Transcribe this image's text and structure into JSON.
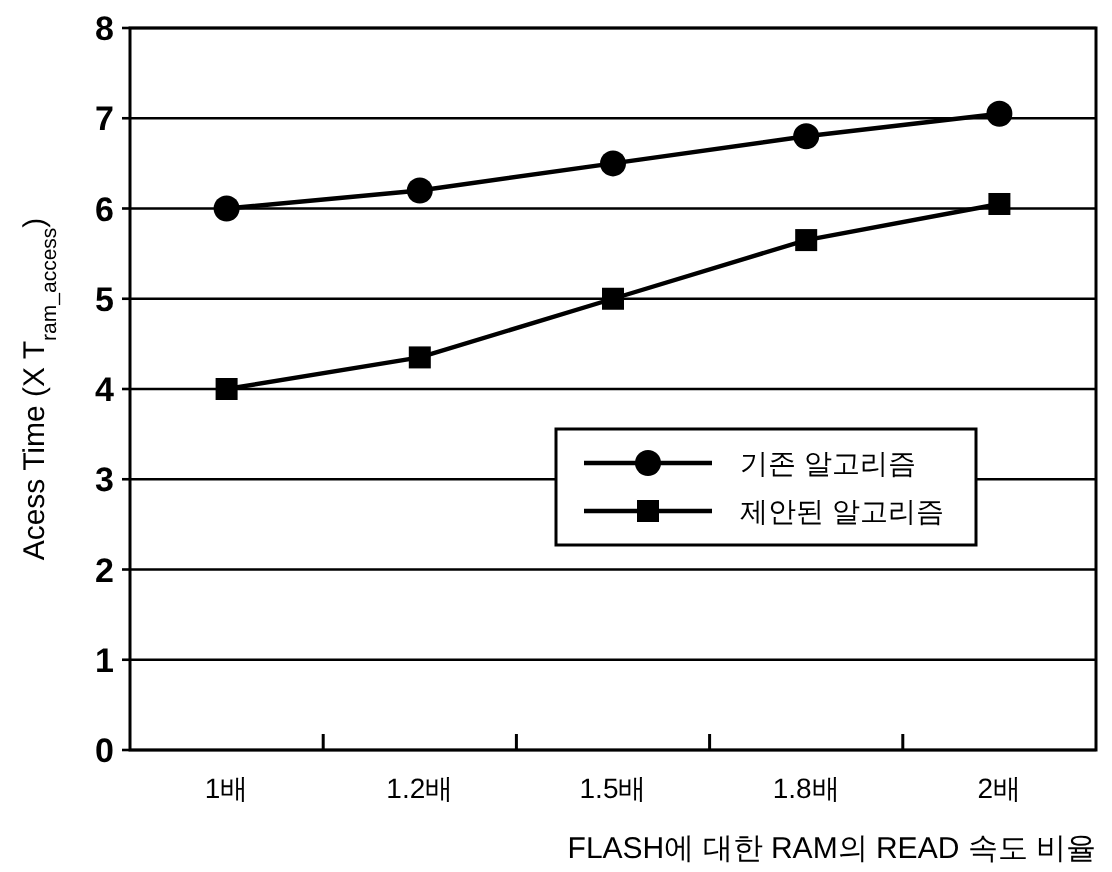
{
  "chart_data": {
    "type": "line",
    "xlabel": "FLASH에 대한 RAM의 READ 속도 비율",
    "ylabel": "Acess Time (X  T$_{ram_access}$)",
    "categories": [
      "1배",
      "1.2배",
      "1.5배",
      "1.8배",
      "2배"
    ],
    "series": [
      {
        "name": "기존 알고리즘",
        "color": "#000000",
        "marker": "circle",
        "values": [
          6.0,
          6.2,
          6.5,
          6.8,
          7.05
        ]
      },
      {
        "name": "제안된 알고리즘",
        "color": "#000000",
        "marker": "square",
        "values": [
          4.0,
          4.35,
          5.0,
          5.65,
          6.05
        ]
      }
    ],
    "ylim": [
      0,
      8
    ],
    "yticks": [
      0,
      1,
      2,
      3,
      4,
      5,
      6,
      7,
      8
    ],
    "grid": "y",
    "legend": "right",
    "line_style": "solid"
  }
}
